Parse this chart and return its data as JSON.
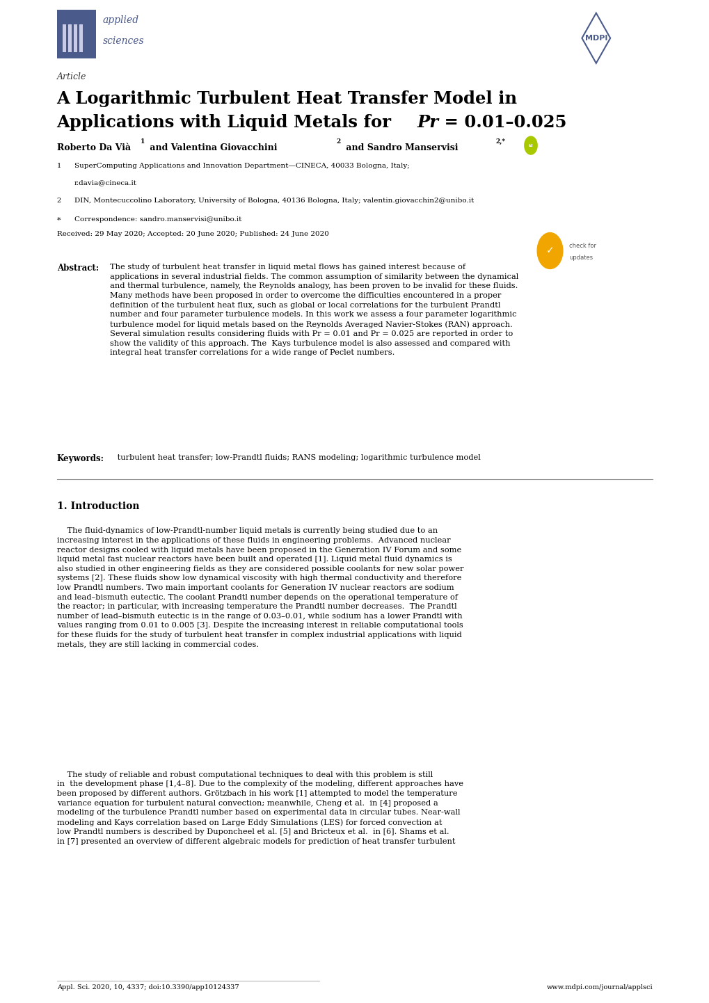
{
  "page_width": 10.2,
  "page_height": 14.42,
  "bg_color": "#ffffff",
  "text_color": "#000000",
  "accent_color": "#4a5a8a",
  "link_color": "#3366cc",
  "journal_name_line1": "applied",
  "journal_name_line2": "sciences",
  "article_label": "Article",
  "title_line1": "A Logarithmic Turbulent Heat Transfer Model in",
  "title_line2": "Applications with Liquid Metals for ",
  "title_pr": "Pr",
  "title_eq": " = 0.01–0.025",
  "authors": "Roberto Da Vià ",
  "affil1": "SuperComputing Applications and Innovation Department—CINECA, 40033 Bologna, Italy;",
  "affil1b": "r.davia@cineca.it",
  "affil2": "DIN, Montecuccolino Laboratory, University of Bologna, 40136 Bologna, Italy; valentin.giovacchin2@unibo.it",
  "corresp": "Correspondence: sandro.manservisi@unibo.it",
  "received": "Received: 29 May 2020; Accepted: 20 June 2020; Published: 24 June 2020",
  "abstract_label": "Abstract:",
  "keywords_label": "Keywords:",
  "keywords_text": " turbulent heat transfer; low-Prandtl fluids; RANS modeling; logarithmic turbulence model",
  "section1_title": "1. Introduction",
  "footer_left": "Appl. Sci. 2020, 10, 4337; doi:10.3390/app10124337",
  "footer_right": "www.mdpi.com/journal/applsci"
}
